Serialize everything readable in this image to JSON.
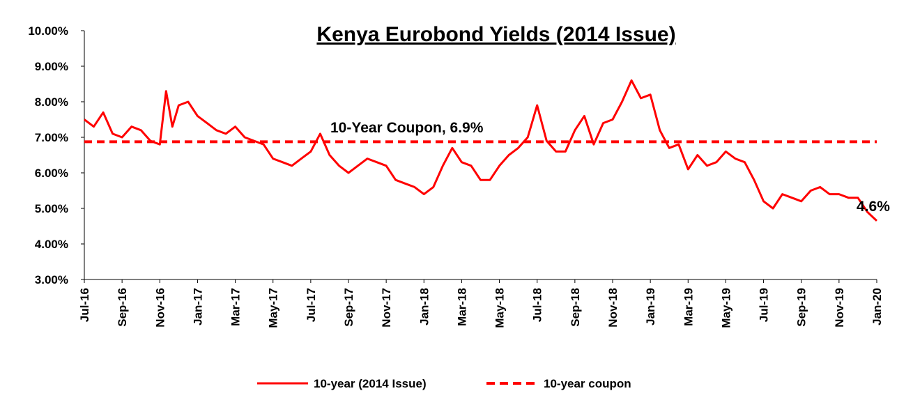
{
  "chart_data": {
    "type": "line",
    "title": "Kenya Eurobond Yields (2014 Issue)",
    "x_tick_labels": [
      "Jul-16",
      "Sep-16",
      "Nov-16",
      "Jan-17",
      "Mar-17",
      "May-17",
      "Jul-17",
      "Sep-17",
      "Nov-17",
      "Jan-18",
      "Mar-18",
      "May-18",
      "Jul-18",
      "Sep-18",
      "Nov-18",
      "Jan-19",
      "Mar-19",
      "May-19",
      "Jul-19",
      "Sep-19",
      "Nov-19",
      "Jan-20"
    ],
    "y_tick_labels": [
      "3.00%",
      "4.00%",
      "5.00%",
      "6.00%",
      "7.00%",
      "8.00%",
      "9.00%",
      "10.00%"
    ],
    "ylim": [
      3.0,
      10.0
    ],
    "x_range": [
      "Jul-16",
      "Jan-20"
    ],
    "grid": false,
    "legend_position": "bottom",
    "series": [
      {
        "name": "10-year (2014 Issue)",
        "color": "#ff0000",
        "style": "solid",
        "x": [
          "Jul-16",
          "Jul-16",
          "Aug-16",
          "Aug-16",
          "Sep-16",
          "Sep-16",
          "Oct-16",
          "Oct-16",
          "Nov-16",
          "Nov-16",
          "Nov-16",
          "Dec-16",
          "Dec-16",
          "Jan-17",
          "Jan-17",
          "Feb-17",
          "Feb-17",
          "Mar-17",
          "Mar-17",
          "Apr-17",
          "Apr-17",
          "May-17",
          "May-17",
          "Jun-17",
          "Jun-17",
          "Jul-17",
          "Jul-17",
          "Aug-17",
          "Aug-17",
          "Sep-17",
          "Sep-17",
          "Oct-17",
          "Oct-17",
          "Nov-17",
          "Nov-17",
          "Dec-17",
          "Dec-17",
          "Jan-18",
          "Jan-18",
          "Feb-18",
          "Feb-18",
          "Mar-18",
          "Mar-18",
          "Apr-18",
          "Apr-18",
          "May-18",
          "May-18",
          "Jun-18",
          "Jun-18",
          "Jul-18",
          "Jul-18",
          "Aug-18",
          "Aug-18",
          "Sep-18",
          "Sep-18",
          "Oct-18",
          "Oct-18",
          "Nov-18",
          "Nov-18",
          "Dec-18",
          "Dec-18",
          "Jan-19",
          "Jan-19",
          "Feb-19",
          "Feb-19",
          "Mar-19",
          "Mar-19",
          "Apr-19",
          "Apr-19",
          "May-19",
          "May-19",
          "Jun-19",
          "Jun-19",
          "Jul-19",
          "Jul-19",
          "Aug-19",
          "Aug-19",
          "Sep-19",
          "Sep-19",
          "Oct-19",
          "Oct-19",
          "Nov-19",
          "Nov-19",
          "Dec-19",
          "Dec-19",
          "Jan-20"
        ],
        "y": [
          7.5,
          7.3,
          7.7,
          7.1,
          7.0,
          7.3,
          7.2,
          6.9,
          6.8,
          8.3,
          7.3,
          7.9,
          8.0,
          7.6,
          7.4,
          7.2,
          7.1,
          7.3,
          7.0,
          6.9,
          6.8,
          6.4,
          6.3,
          6.2,
          6.4,
          6.6,
          7.1,
          6.5,
          6.2,
          6.0,
          6.2,
          6.4,
          6.3,
          6.2,
          5.8,
          5.7,
          5.6,
          5.4,
          5.6,
          6.2,
          6.7,
          6.3,
          6.2,
          5.8,
          5.8,
          6.2,
          6.5,
          6.7,
          7.0,
          7.9,
          6.9,
          6.6,
          6.6,
          7.2,
          7.6,
          6.8,
          7.4,
          7.5,
          8.0,
          8.6,
          8.1,
          8.2,
          7.2,
          6.7,
          6.8,
          6.1,
          6.5,
          6.2,
          6.3,
          6.6,
          6.4,
          6.3,
          5.8,
          5.2,
          5.0,
          5.4,
          5.3,
          5.2,
          5.5,
          5.6,
          5.4,
          5.4,
          5.3,
          5.3,
          4.9,
          4.65
        ]
      },
      {
        "name": "10-year coupon",
        "color": "#ff0000",
        "style": "dashed",
        "value": 6.875
      }
    ],
    "annotations": [
      {
        "text": "10-Year Coupon, 6.9%"
      },
      {
        "text": "4.6%"
      }
    ]
  }
}
